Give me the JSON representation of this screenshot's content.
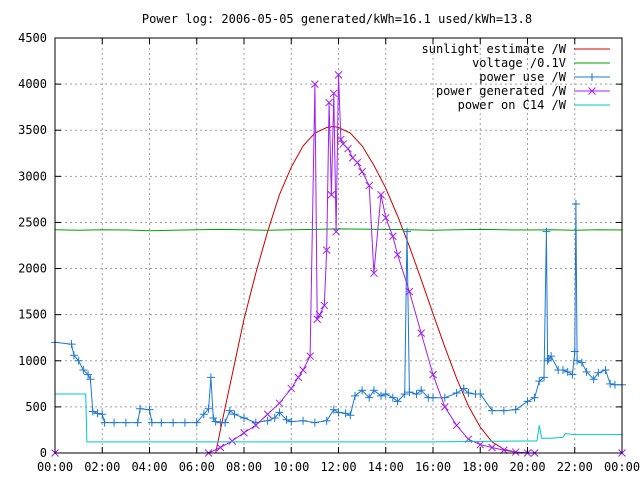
{
  "chart_data": {
    "type": "line",
    "title": "Power log: 2006-05-05 generated/kWh=16.1 used/kWh=13.8",
    "xlabel": "",
    "ylabel": "",
    "xlim_hours": [
      0,
      24
    ],
    "ylim": [
      0,
      4500
    ],
    "grid": true,
    "legend_position": "top-right",
    "x_ticks": [
      {
        "h": 0,
        "label": "00:00"
      },
      {
        "h": 2,
        "label": "02:00"
      },
      {
        "h": 4,
        "label": "04:00"
      },
      {
        "h": 6,
        "label": "06:00"
      },
      {
        "h": 8,
        "label": "08:00"
      },
      {
        "h": 10,
        "label": "10:00"
      },
      {
        "h": 12,
        "label": "12:00"
      },
      {
        "h": 14,
        "label": "14:00"
      },
      {
        "h": 16,
        "label": "16:00"
      },
      {
        "h": 18,
        "label": "18:00"
      },
      {
        "h": 20,
        "label": "20:00"
      },
      {
        "h": 22,
        "label": "22:00"
      },
      {
        "h": 24,
        "label": "00:00"
      }
    ],
    "y_ticks": [
      0,
      500,
      1000,
      1500,
      2000,
      2500,
      3000,
      3500,
      4000,
      4500
    ],
    "series": [
      {
        "name": "sunlight estimate /W",
        "color": "#cc0000",
        "marker": "none",
        "x": [
          0,
          6.8,
          7.0,
          7.5,
          8.0,
          8.5,
          9.0,
          9.5,
          10.0,
          10.5,
          11.0,
          11.5,
          11.8,
          12.0,
          12.5,
          13.0,
          13.5,
          14.0,
          14.5,
          15.0,
          15.5,
          16.0,
          16.5,
          17.0,
          17.5,
          18.0,
          18.5,
          19.0,
          19.5,
          20.0,
          20.5,
          24
        ],
        "y": [
          0,
          0,
          250,
          850,
          1450,
          1950,
          2400,
          2800,
          3100,
          3330,
          3470,
          3530,
          3540,
          3530,
          3470,
          3330,
          3120,
          2870,
          2570,
          2240,
          1880,
          1510,
          1150,
          810,
          510,
          280,
          120,
          40,
          10,
          0,
          0,
          0
        ]
      },
      {
        "name": "voltage /0.1V",
        "color": "#00a000",
        "marker": "none",
        "x": [
          0,
          1,
          2,
          3,
          4,
          5,
          6,
          7,
          8,
          9,
          10,
          11,
          12,
          13,
          14,
          15,
          16,
          17,
          18,
          19,
          20,
          21,
          22,
          23,
          24
        ],
        "y": [
          2420,
          2415,
          2420,
          2418,
          2410,
          2415,
          2420,
          2425,
          2420,
          2415,
          2420,
          2425,
          2430,
          2428,
          2425,
          2420,
          2415,
          2420,
          2425,
          2420,
          2418,
          2420,
          2415,
          2420,
          2418
        ]
      },
      {
        "name": "power use /W",
        "color": "#1e78d2",
        "marker": "plus",
        "x": [
          0,
          0.7,
          0.8,
          1.0,
          1.2,
          1.4,
          1.5,
          1.6,
          1.8,
          2.0,
          2.1,
          2.5,
          3.0,
          3.5,
          3.6,
          4.0,
          4.1,
          4.5,
          5.0,
          5.5,
          6.0,
          6.3,
          6.5,
          6.6,
          6.7,
          6.8,
          7.0,
          7.2,
          7.4,
          7.6,
          8.0,
          8.5,
          9.0,
          9.3,
          9.5,
          9.8,
          10.0,
          10.5,
          11.0,
          11.5,
          11.8,
          12.0,
          12.3,
          12.5,
          12.7,
          13.0,
          13.3,
          13.5,
          13.8,
          14.0,
          14.3,
          14.5,
          14.8,
          14.9,
          15.0,
          15.3,
          15.5,
          15.8,
          16.0,
          16.5,
          17.0,
          17.3,
          17.5,
          17.8,
          18.0,
          18.5,
          19.0,
          19.5,
          20.0,
          20.3,
          20.5,
          20.7,
          20.8,
          20.85,
          20.9,
          21.0,
          21.3,
          21.5,
          21.7,
          21.9,
          22.0,
          22.05,
          22.1,
          22.3,
          22.5,
          22.8,
          23.0,
          23.3,
          23.5,
          23.7,
          24.0
        ],
        "y": [
          1200,
          1180,
          1060,
          1000,
          900,
          850,
          800,
          450,
          430,
          420,
          330,
          330,
          330,
          330,
          480,
          470,
          330,
          330,
          330,
          330,
          330,
          420,
          480,
          820,
          380,
          340,
          330,
          330,
          460,
          420,
          380,
          330,
          350,
          380,
          440,
          360,
          340,
          350,
          330,
          350,
          470,
          440,
          430,
          410,
          620,
          680,
          600,
          680,
          620,
          640,
          600,
          560,
          640,
          2400,
          660,
          640,
          680,
          600,
          600,
          600,
          650,
          700,
          650,
          640,
          640,
          460,
          460,
          470,
          560,
          600,
          780,
          820,
          2400,
          1000,
          1020,
          1050,
          900,
          900,
          880,
          850,
          1100,
          2700,
          1000,
          980,
          880,
          800,
          870,
          900,
          750,
          740,
          740
        ]
      },
      {
        "name": "power generated /W",
        "color": "#a020f0",
        "marker": "x",
        "x": [
          0,
          6.5,
          7.0,
          7.5,
          8.0,
          8.5,
          9.0,
          9.5,
          10.0,
          10.3,
          10.5,
          10.8,
          11.0,
          11.1,
          11.2,
          11.4,
          11.5,
          11.6,
          11.7,
          11.8,
          11.9,
          12.0,
          12.1,
          12.2,
          12.4,
          12.6,
          12.8,
          13.0,
          13.3,
          13.5,
          13.8,
          14.0,
          14.3,
          14.5,
          15.0,
          15.5,
          16.0,
          16.5,
          17.0,
          17.5,
          18.0,
          18.5,
          19.0,
          19.5,
          20.0,
          20.3,
          24
        ],
        "y": [
          0,
          0,
          60,
          130,
          220,
          300,
          420,
          540,
          700,
          820,
          900,
          1050,
          4000,
          1450,
          1500,
          1600,
          2200,
          3800,
          2800,
          3900,
          2400,
          4100,
          3400,
          3350,
          3300,
          3200,
          3150,
          3050,
          2900,
          1950,
          2800,
          2550,
          2350,
          2150,
          1750,
          1300,
          850,
          500,
          300,
          150,
          90,
          60,
          30,
          10,
          0,
          0,
          0
        ]
      },
      {
        "name": "power on C14 /W",
        "color": "#00c8c8",
        "marker": "none",
        "x": [
          0,
          1.3,
          1.35,
          4.0,
          8.0,
          12.0,
          16.0,
          20.0,
          20.4,
          20.5,
          20.6,
          21.0,
          21.5,
          21.6,
          22.0,
          24
        ],
        "y": [
          640,
          640,
          120,
          120,
          120,
          120,
          120,
          130,
          130,
          300,
          160,
          160,
          170,
          210,
          200,
          200
        ]
      }
    ]
  }
}
